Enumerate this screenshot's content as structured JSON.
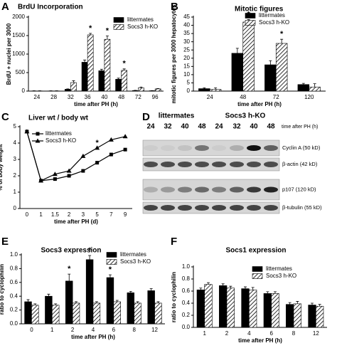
{
  "chart_data": [
    {
      "panel": "A",
      "type": "bar",
      "title": "BrdU Incorporation",
      "x_label": "time after PH (h)",
      "y_label": "BrdU + nuclei per 3000",
      "categories": [
        "24",
        "28",
        "32",
        "36",
        "40",
        "48",
        "72",
        "96"
      ],
      "series": [
        {
          "name": "littermates",
          "color": "#000000",
          "fill": "solid",
          "values": [
            5,
            5,
            50,
            780,
            550,
            320,
            15,
            10
          ],
          "errors": [
            3,
            3,
            10,
            60,
            40,
            30,
            5,
            5
          ]
        },
        {
          "name": "Socs3 h-KO",
          "color": "#000000",
          "fill": "hatch",
          "values": [
            5,
            5,
            230,
            1520,
            1400,
            560,
            90,
            60
          ],
          "errors": [
            3,
            3,
            50,
            40,
            90,
            40,
            20,
            10
          ]
        }
      ],
      "ylim": [
        0,
        2000
      ],
      "yticks": [
        0,
        500,
        1000,
        1500,
        2000
      ],
      "annotations": [
        {
          "text": "*",
          "category": "36"
        },
        {
          "text": "*",
          "category": "40"
        },
        {
          "text": "*",
          "category": "48"
        }
      ]
    },
    {
      "panel": "B",
      "type": "bar",
      "title": "Mitotic figures",
      "x_label": "time after PH (h)",
      "y_label": "mitotic figures per 3000 hepatocytes",
      "categories": [
        "24",
        "48",
        "72",
        "120"
      ],
      "series": [
        {
          "name": "littermates",
          "color": "#000000",
          "fill": "solid",
          "values": [
            1.5,
            23,
            16,
            4
          ],
          "errors": [
            0.5,
            3,
            2.5,
            0.7
          ]
        },
        {
          "name": "Socs3 h-KO",
          "color": "#000000",
          "fill": "hatch",
          "values": [
            1,
            42,
            29,
            2.5
          ],
          "errors": [
            1,
            1.5,
            2.5,
            2
          ]
        }
      ],
      "ylim": [
        0,
        45
      ],
      "yticks": [
        0,
        5,
        10,
        15,
        20,
        25,
        30,
        35,
        40,
        45
      ],
      "annotations": [
        {
          "text": "*",
          "category": "48"
        },
        {
          "text": "*",
          "category": "72"
        }
      ]
    },
    {
      "panel": "C",
      "type": "line",
      "title": "Liver wt / body wt",
      "x_label": "time after PH (d)",
      "y_label": "% of body weight",
      "categories": [
        "0",
        "1",
        "1.5",
        "2",
        "3",
        "5",
        "7",
        "9"
      ],
      "series": [
        {
          "name": "littermates",
          "color": "#000000",
          "marker": "square",
          "values": [
            4.7,
            1.7,
            1.8,
            2.0,
            2.3,
            2.8,
            3.3,
            3.6
          ]
        },
        {
          "name": "Socs3 h-KO",
          "color": "#000000",
          "marker": "triangle",
          "values": [
            4.7,
            1.7,
            2.1,
            2.3,
            3.2,
            3.7,
            4.2,
            4.4
          ]
        }
      ],
      "ylim": [
        0,
        5
      ],
      "yticks": [
        0,
        1,
        2,
        3,
        4,
        5
      ],
      "annotations": [
        {
          "text": "*",
          "category": "5"
        }
      ]
    },
    {
      "panel": "E",
      "type": "bar",
      "title": "Socs3 expression",
      "x_label": "time after PH (h)",
      "y_label": "ratio to cyclophilin",
      "categories": [
        "0",
        "1",
        "2",
        "4",
        "6",
        "8",
        "12"
      ],
      "series": [
        {
          "name": "littermates",
          "color": "#000000",
          "fill": "solid",
          "values": [
            0.32,
            0.4,
            0.62,
            0.93,
            0.67,
            0.45,
            0.48
          ],
          "errors": [
            0.03,
            0.03,
            0.1,
            0.06,
            0.04,
            0.02,
            0.03
          ]
        },
        {
          "name": "Socs3 h-KO",
          "color": "#000000",
          "fill": "hatch",
          "values": [
            0.27,
            0.27,
            0.3,
            0.3,
            0.32,
            0.3,
            0.3
          ],
          "errors": [
            0.02,
            0.02,
            0.02,
            0.02,
            0.02,
            0.02,
            0.02
          ]
        }
      ],
      "ylim": [
        0,
        1
      ],
      "yticks": [
        {
          "value": 0,
          "label": "0.0"
        },
        0.2,
        0.4,
        0.6,
        0.8,
        {
          "value": 1,
          "label": "1.0"
        }
      ],
      "annotations": [
        {
          "text": "*",
          "category": "2"
        },
        {
          "text": "*",
          "category": "4"
        },
        {
          "text": "*",
          "category": "6"
        }
      ]
    },
    {
      "panel": "F",
      "type": "bar",
      "title": "Socs1 expression",
      "x_label": "time after PH (h)",
      "y_label": "ratio to cyclophilin",
      "categories": [
        "1",
        "2",
        "4",
        "6",
        "8",
        "12"
      ],
      "series": [
        {
          "name": "littermates",
          "color": "#000000",
          "fill": "solid",
          "values": [
            0.62,
            0.69,
            0.64,
            0.56,
            0.38,
            0.37
          ],
          "errors": [
            0.03,
            0.03,
            0.03,
            0.03,
            0.03,
            0.03
          ]
        },
        {
          "name": "Socs3 h-KO",
          "color": "#000000",
          "fill": "hatch",
          "values": [
            0.71,
            0.65,
            0.62,
            0.56,
            0.39,
            0.35
          ],
          "errors": [
            0.03,
            0.03,
            0.04,
            0.03,
            0.04,
            0.03
          ]
        }
      ],
      "ylim": [
        0,
        1
      ],
      "yticks": [
        {
          "value": 0,
          "label": "0.0"
        },
        0.2,
        0.4,
        0.6,
        0.8,
        {
          "value": 1,
          "label": "1.0"
        }
      ]
    }
  ],
  "blot": {
    "panel": "D",
    "groups": [
      "littermates",
      "Socs3 h-KO"
    ],
    "lanes": [
      "24",
      "32",
      "40",
      "48",
      "24",
      "32",
      "40",
      "48"
    ],
    "time_label": "time after PH (h)",
    "rows": [
      "Cyclin A (50 kD)",
      "β-actin (42 kD)",
      "p107 (120 kD)",
      "β-tubulin (55 kD)"
    ]
  }
}
